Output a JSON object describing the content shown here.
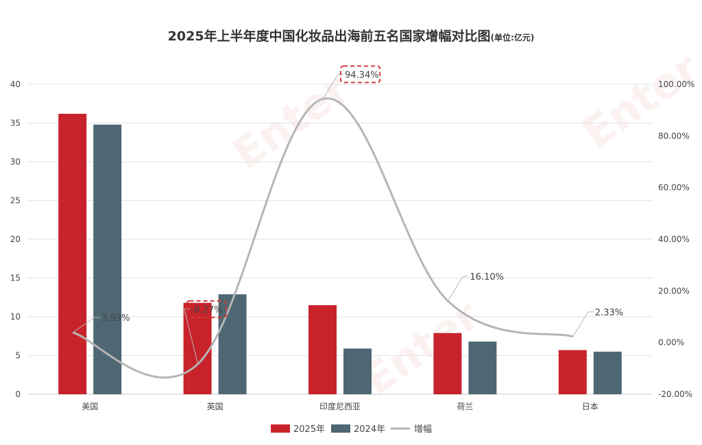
{
  "title": "2025年上半年度中国化妆品出海前五名国家增幅对比图",
  "title_unit": "(单位:亿元)",
  "watermark": "Entercoo",
  "colors": {
    "series2025": "#c8232b",
    "series2024": "#4f6772",
    "growth": "#b5b5b5",
    "highlight": "#d23a3a",
    "grid": "#e3e3e3",
    "axis_text": "#444444"
  },
  "chart_data": {
    "type": "bar",
    "title": "2025年上半年度中国化妆品出海前五名国家增幅对比图",
    "categories": [
      "美国",
      "英国",
      "印度尼西亚",
      "荷兰",
      "日本"
    ],
    "series": [
      {
        "name": "2025年",
        "type": "bar",
        "axis": "left",
        "values": [
          36.2,
          11.8,
          11.5,
          7.9,
          5.7
        ]
      },
      {
        "name": "2024年",
        "type": "bar",
        "axis": "left",
        "values": [
          34.8,
          12.9,
          5.9,
          6.8,
          5.5
        ]
      },
      {
        "name": "增幅",
        "type": "line",
        "axis": "right",
        "values": [
          3.93,
          -8.27,
          94.34,
          16.1,
          2.33
        ],
        "labels": [
          "3.93%",
          "-8.27%",
          "94.34%",
          "16.10%",
          "2.33%"
        ],
        "highlighted": [
          false,
          true,
          true,
          false,
          false
        ]
      }
    ],
    "y_left": {
      "min": 0,
      "max": 40,
      "step": 5,
      "ticks": [
        "0",
        "5",
        "10",
        "15",
        "20",
        "25",
        "30",
        "35",
        "40"
      ]
    },
    "y_right": {
      "min": -20,
      "max": 100,
      "step": 20,
      "ticks": [
        "-20.00%",
        "0.00%",
        "20.00%",
        "40.00%",
        "60.00%",
        "80.00%",
        "100.00%"
      ]
    },
    "grid": true,
    "legend_position": "bottom"
  }
}
